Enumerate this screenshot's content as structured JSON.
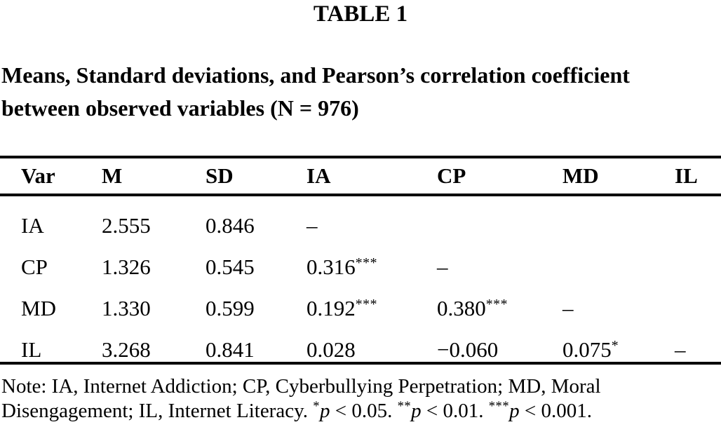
{
  "page": {
    "table_label": "TABLE 1",
    "title_lines": [
      "Means, Standard deviations, and Pearson’s correlation coefficient",
      "between observed variables (N = 976)"
    ]
  },
  "table": {
    "columns": [
      "Var",
      "M",
      "SD",
      "IA",
      "CP",
      "MD",
      "IL"
    ],
    "rows": [
      [
        "IA",
        "2.555",
        "0.846",
        "–",
        "",
        "",
        ""
      ],
      [
        "CP",
        "1.326",
        "0.545",
        "0.316***",
        "–",
        "",
        ""
      ],
      [
        "MD",
        "1.330",
        "0.599",
        "0.192***",
        "0.380***",
        "–",
        ""
      ],
      [
        "IL",
        "3.268",
        "0.841",
        "0.028",
        "−0.060",
        "0.075*",
        "–"
      ]
    ]
  },
  "note": {
    "lines": [
      "Note: IA, Internet Addiction; CP, Cyberbullying Perpetration; MD, Moral",
      "Disengagement; IL, Internet Literacy. *p < 0.05. **p < 0.01. ***p < 0.001."
    ]
  },
  "colors": {
    "text": "#000000",
    "background": "#ffffff",
    "rule": "#000000"
  }
}
